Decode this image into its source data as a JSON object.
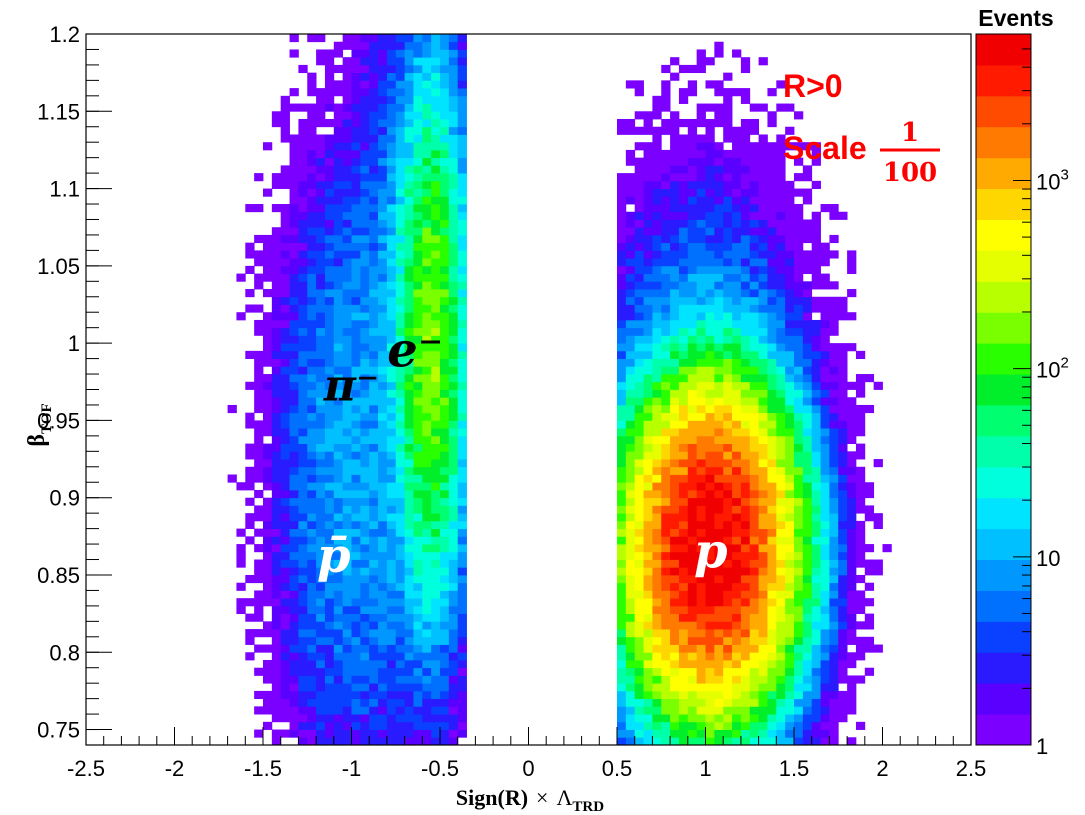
{
  "chart_data": {
    "type": "heatmap",
    "title": "",
    "xlabel": {
      "main": "Sign(R)",
      "times": "×",
      "symbol": "Λ",
      "subscript": "TRD"
    },
    "ylabel": {
      "symbol": "β",
      "subscript": "TOF"
    },
    "xlim": [
      -2.5,
      2.5
    ],
    "ylim": [
      0.74,
      1.2
    ],
    "x_ticks": [
      "-2.5",
      "-2",
      "-1.5",
      "-1",
      "-0.5",
      "0",
      "0.5",
      "1",
      "1.5",
      "2",
      "2.5"
    ],
    "y_ticks": [
      "0.75",
      "0.8",
      "0.85",
      "0.9",
      "0.95",
      "1",
      "1.05",
      "1.1",
      "1.15",
      "1.2"
    ],
    "z_scale": "log",
    "zlim": [
      1,
      6000
    ],
    "colorbar": {
      "title": "Events",
      "labels": [
        {
          "base": "1",
          "exp": ""
        },
        {
          "base": "10",
          "exp": ""
        },
        {
          "base": "10",
          "exp": "2"
        },
        {
          "base": "10",
          "exp": "3"
        }
      ],
      "label_values": [
        1,
        10,
        100,
        1000
      ]
    },
    "clusters": [
      {
        "name": "p",
        "center_x": 1.0,
        "center_y": 0.87,
        "peak_events": 6000
      },
      {
        "name": "e⁻",
        "center_x": -0.55,
        "center_y": 1.0,
        "peak_events": 150
      },
      {
        "name": "π⁻",
        "center_x": -1.05,
        "center_y": 0.95,
        "peak_events": 10
      },
      {
        "name": "p̄",
        "center_x": -1.1,
        "center_y": 0.86,
        "peak_events": 10
      }
    ],
    "annotations": {
      "rigidity": "R>0",
      "scale_word": "Scale",
      "scale_num": "1",
      "scale_den": "100"
    },
    "grid": false,
    "legend": "none"
  }
}
